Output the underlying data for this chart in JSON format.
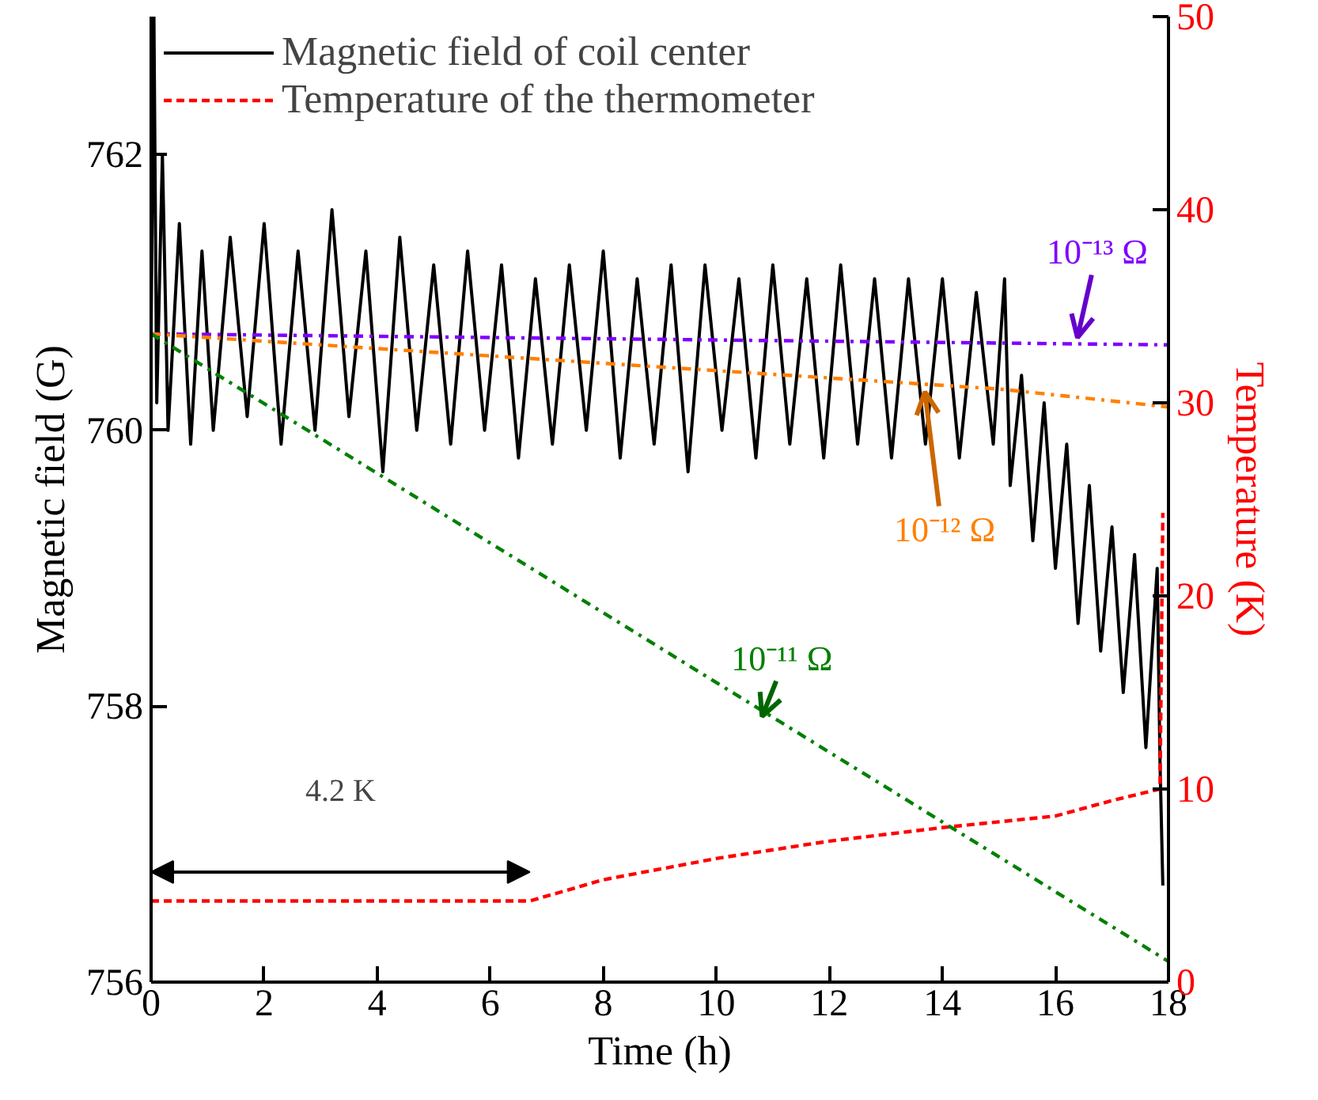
{
  "chart_data": {
    "type": "line",
    "xlabel": "Time (h)",
    "ylabel": "Magnetic field (G)",
    "y2label": "Temperature (K)",
    "xlim": [
      0,
      18
    ],
    "xticks": [
      0,
      2,
      4,
      6,
      8,
      10,
      12,
      14,
      16,
      18
    ],
    "ylim": [
      756,
      763
    ],
    "yticks": [
      756,
      758,
      760,
      762
    ],
    "y2lim": [
      0,
      50
    ],
    "y2ticks": [
      0,
      10,
      20,
      30,
      40,
      50
    ],
    "grid": false,
    "legend": "top left",
    "marker": "none",
    "annotations": [
      "4.2 K"
    ],
    "series": [
      {
        "name": "Magnetic field of coil center",
        "color": "#000000",
        "line_style": "solid",
        "x": [
          0,
          0.05,
          0.1,
          0.2,
          0.3,
          0.5,
          0.7,
          0.9,
          1.1,
          1.4,
          1.7,
          2.0,
          2.3,
          2.6,
          2.9,
          3.2,
          3.5,
          3.8,
          4.1,
          4.4,
          4.7,
          5.0,
          5.3,
          5.6,
          5.9,
          6.2,
          6.5,
          6.8,
          7.1,
          7.4,
          7.7,
          8.0,
          8.3,
          8.6,
          8.9,
          9.2,
          9.5,
          9.8,
          10.1,
          10.4,
          10.7,
          11.0,
          11.3,
          11.6,
          11.9,
          12.2,
          12.5,
          12.8,
          13.1,
          13.4,
          13.7,
          14.0,
          14.3,
          14.6,
          14.9,
          15.1,
          15.2,
          15.4,
          15.6,
          15.8,
          16.0,
          16.2,
          16.4,
          16.6,
          16.8,
          17.0,
          17.2,
          17.4,
          17.6,
          17.8,
          17.85,
          17.9
        ],
        "values": [
          760.7,
          763.0,
          760.2,
          762.0,
          760.0,
          761.5,
          759.9,
          761.3,
          760.0,
          761.4,
          760.1,
          761.5,
          759.9,
          761.3,
          760.0,
          761.6,
          760.1,
          761.3,
          759.7,
          761.4,
          760.0,
          761.2,
          759.9,
          761.3,
          760.0,
          761.2,
          759.8,
          761.1,
          759.9,
          761.2,
          760.0,
          761.3,
          759.8,
          761.1,
          759.9,
          761.2,
          759.7,
          761.2,
          760.0,
          761.1,
          759.8,
          761.2,
          759.9,
          761.1,
          759.8,
          761.2,
          759.9,
          761.1,
          759.8,
          761.1,
          759.9,
          761.1,
          759.8,
          761.0,
          759.9,
          761.1,
          759.6,
          760.4,
          759.2,
          760.2,
          759.0,
          759.9,
          758.6,
          759.6,
          758.4,
          759.3,
          758.1,
          759.1,
          757.7,
          759.0,
          757.6,
          756.7
        ]
      },
      {
        "name": "Temperature of the thermometer",
        "color": "#ff0000",
        "line_style": "dashed",
        "axis": "y2",
        "x": [
          0,
          6.7,
          8,
          10,
          12,
          14,
          16,
          17,
          17.85,
          17.9
        ],
        "values": [
          4.2,
          4.2,
          5.3,
          6.4,
          7.3,
          8.0,
          8.6,
          9.4,
          10.0,
          24.3
        ]
      },
      {
        "name": "10⁻¹³ Ω",
        "color": "#8000ff",
        "line_style": "dashdot",
        "x": [
          0,
          18
        ],
        "values": [
          760.7,
          760.62
        ]
      },
      {
        "name": "10⁻¹² Ω",
        "color": "#ff8000",
        "line_style": "dashdot",
        "x": [
          0,
          15,
          18
        ],
        "values": [
          760.7,
          760.3,
          760.17
        ]
      },
      {
        "name": "10⁻¹¹ Ω",
        "color": "#008000",
        "line_style": "dashdot",
        "x": [
          0,
          18
        ],
        "values": [
          760.7,
          756.15
        ]
      }
    ]
  }
}
